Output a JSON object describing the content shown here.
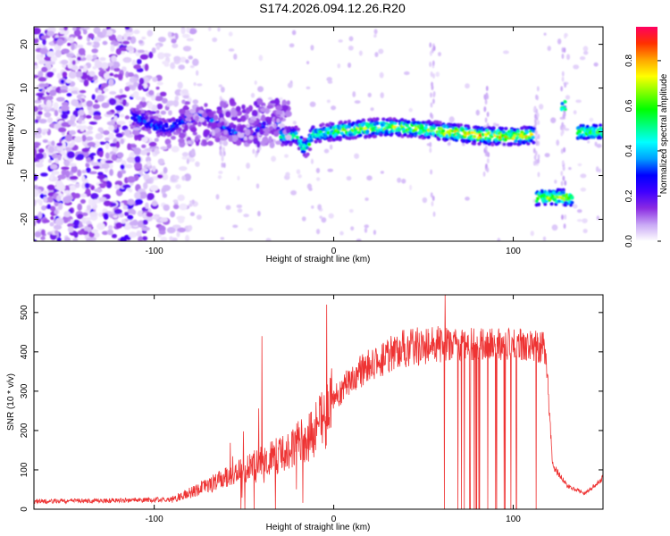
{
  "title": "S174.2026.094.12.26.R20",
  "chart_data": [
    {
      "type": "heatmap",
      "xlabel": "Height of straight line (km)",
      "ylabel": "Frequency (Hz)",
      "xlim": [
        -167,
        150
      ],
      "ylim": [
        -25,
        24
      ],
      "xticks": [
        -100,
        0,
        100
      ],
      "yticks": [
        -20,
        -10,
        0,
        10,
        20
      ],
      "colorbar": {
        "label": "Normalized spectral amplitude",
        "range": [
          0,
          0.95
        ],
        "ticks": [
          0.0,
          0.2,
          0.4,
          0.6,
          0.8
        ],
        "colors": [
          "#ffffff",
          "#c9a8f5",
          "#8a2be2",
          "#3f00ff",
          "#0000ff",
          "#00a0ff",
          "#00ffff",
          "#00ff80",
          "#00ff00",
          "#80ff00",
          "#ffff00",
          "#ffa500",
          "#ff3000",
          "#ff0060"
        ]
      },
      "features": [
        {
          "type": "noise",
          "x": [
            -167,
            -85
          ],
          "y": [
            -25,
            24
          ],
          "amplitude": 0.12
        },
        {
          "type": "band",
          "x": [
            -112,
            112
          ],
          "y_center": 0,
          "note": "near-zero-frequency trace"
        },
        {
          "type": "band",
          "x": [
            113,
            133
          ],
          "y_center": -15
        },
        {
          "type": "band",
          "x": [
            136,
            150
          ],
          "y_center": 0
        }
      ]
    },
    {
      "type": "line",
      "xlabel": "Height of straight line (km)",
      "ylabel": "SNR (10 * v/v)",
      "xlim": [
        -167,
        150
      ],
      "ylim": [
        0,
        545
      ],
      "xticks": [
        -100,
        0,
        100
      ],
      "yticks": [
        0,
        100,
        200,
        300,
        400,
        500
      ],
      "color": "#ee3333",
      "trend": {
        "x": [
          -167,
          -120,
          -90,
          -70,
          -50,
          -30,
          -15,
          -5,
          0,
          10,
          20,
          30,
          40,
          60,
          80,
          100,
          118,
          122,
          130,
          140,
          150
        ],
        "y": [
          20,
          22,
          25,
          60,
          100,
          140,
          180,
          230,
          280,
          330,
          370,
          390,
          410,
          420,
          420,
          420,
          410,
          110,
          60,
          40,
          80
        ]
      },
      "spikes": [
        {
          "x": -40,
          "y": 440
        },
        {
          "x": -4,
          "y": 520
        },
        {
          "x": 62,
          "y": 545
        }
      ],
      "dropout_range": [
        60,
        118
      ]
    }
  ]
}
